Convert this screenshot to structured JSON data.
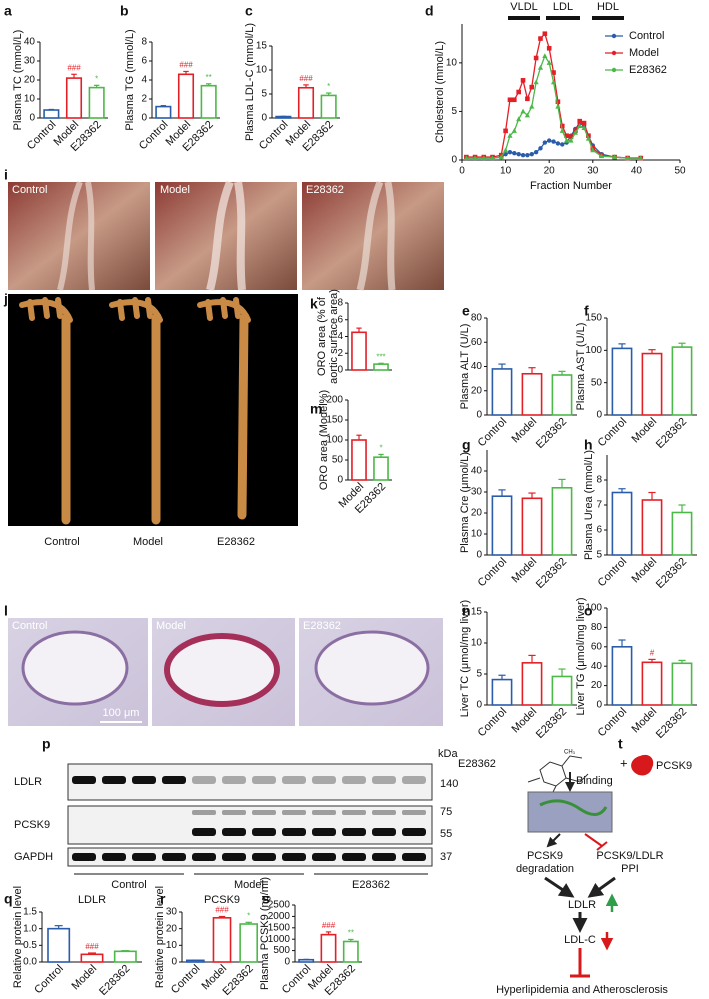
{
  "chart_data": [
    {
      "label": "a",
      "type": "bar",
      "ylabel": "Plasma TC (mmol/L)",
      "categories": [
        "Control",
        "Model",
        "E28362"
      ],
      "values": [
        4.2,
        21,
        16
      ],
      "errors": [
        0.3,
        2,
        1.2
      ],
      "colors": [
        "#2a5caa",
        "#e41f26",
        "#4cb848"
      ],
      "annotations": [
        null,
        "###",
        "*"
      ],
      "ylim": [
        0,
        40
      ],
      "yticks": [
        0,
        10,
        20,
        30,
        40
      ]
    },
    {
      "label": "b",
      "type": "bar",
      "ylabel": "Plasma TG (mmol/L)",
      "categories": [
        "Control",
        "Model",
        "E28362"
      ],
      "values": [
        1.2,
        4.6,
        3.4
      ],
      "errors": [
        0.1,
        0.3,
        0.2
      ],
      "colors": [
        "#2a5caa",
        "#e41f26",
        "#4cb848"
      ],
      "annotations": [
        null,
        "###",
        "**"
      ],
      "ylim": [
        0,
        8
      ],
      "yticks": [
        0,
        2,
        4,
        6,
        8
      ]
    },
    {
      "label": "c",
      "type": "bar",
      "ylabel": "Plasma LDL-C (mmol/L)",
      "categories": [
        "Control",
        "Model",
        "E28362"
      ],
      "values": [
        0.3,
        6.3,
        4.7
      ],
      "errors": [
        0.05,
        0.6,
        0.5
      ],
      "colors": [
        "#2a5caa",
        "#e41f26",
        "#4cb848"
      ],
      "annotations": [
        null,
        "###",
        "*"
      ],
      "ylim": [
        0,
        15
      ],
      "yticks": [
        0,
        5,
        10,
        15
      ]
    },
    {
      "label": "d",
      "type": "line",
      "xlabel": "Fraction Number",
      "ylabel": "Cholesterol (mmol/L)",
      "annotations": [
        "VLDL",
        "LDL",
        "HDL"
      ],
      "legend": "upper right",
      "x": [
        1,
        3,
        5,
        7,
        9,
        10,
        11,
        12,
        13,
        14,
        15,
        16,
        17,
        18,
        19,
        20,
        21,
        22,
        23,
        24,
        25,
        26,
        27,
        28,
        29,
        30,
        32,
        35,
        38,
        41
      ],
      "series": [
        {
          "name": "Control",
          "color": "#2a5caa",
          "marker": "circle",
          "values": [
            0.2,
            0.2,
            0.2,
            0.2,
            0.3,
            0.6,
            0.8,
            0.7,
            0.6,
            0.5,
            0.5,
            0.6,
            0.8,
            1.2,
            1.8,
            2.0,
            1.9,
            1.7,
            1.6,
            1.8,
            2.5,
            3.2,
            3.8,
            3.5,
            2.5,
            1.5,
            0.6,
            0.3,
            0.2,
            0.2
          ]
        },
        {
          "name": "Model",
          "color": "#e41f26",
          "marker": "square",
          "values": [
            0.3,
            0.3,
            0.3,
            0.3,
            0.5,
            3.0,
            6.2,
            6.2,
            7.0,
            8.2,
            6.3,
            7.5,
            10.5,
            12.5,
            13.0,
            11.5,
            9.0,
            6.0,
            3.5,
            2.5,
            2.4,
            3.0,
            4.0,
            3.8,
            2.5,
            1.2,
            0.5,
            0.3,
            0.2,
            0.2
          ]
        },
        {
          "name": "E28362",
          "color": "#4cb848",
          "marker": "triangle",
          "values": [
            0.2,
            0.2,
            0.2,
            0.2,
            0.3,
            1.0,
            2.5,
            3.0,
            4.2,
            5.0,
            4.6,
            5.5,
            8.0,
            9.5,
            10.7,
            10.0,
            8.0,
            5.5,
            3.0,
            2.0,
            2.0,
            2.8,
            3.5,
            3.3,
            2.2,
            1.0,
            0.4,
            0.3,
            0.2,
            0.2
          ]
        }
      ],
      "xlim": [
        0,
        50
      ],
      "xticks": [
        0,
        10,
        20,
        30,
        40,
        50
      ],
      "ylim": [
        0,
        14
      ],
      "yticks": [
        0,
        5,
        10
      ]
    },
    {
      "label": "e",
      "type": "bar",
      "ylabel": "Plasma ALT (U/L)",
      "categories": [
        "Control",
        "Model",
        "E28362"
      ],
      "values": [
        38,
        34,
        33
      ],
      "errors": [
        4,
        5,
        3
      ],
      "colors": [
        "#2a5caa",
        "#e41f26",
        "#4cb848"
      ],
      "ylim": [
        0,
        80
      ],
      "yticks": [
        0,
        20,
        40,
        60,
        80
      ]
    },
    {
      "label": "f",
      "type": "bar",
      "ylabel": "Plasma AST (U/L)",
      "categories": [
        "Control",
        "Model",
        "E28362"
      ],
      "values": [
        103,
        95,
        105
      ],
      "errors": [
        7,
        6,
        6
      ],
      "colors": [
        "#2a5caa",
        "#e41f26",
        "#4cb848"
      ],
      "ylim": [
        0,
        150
      ],
      "yticks": [
        0,
        50,
        100,
        150
      ]
    },
    {
      "label": "g",
      "type": "bar",
      "ylabel": "Plasma Cre (μmol/L)",
      "categories": [
        "Control",
        "Model",
        "E28362"
      ],
      "values": [
        28,
        27,
        32
      ],
      "errors": [
        3,
        2.5,
        4
      ],
      "colors": [
        "#2a5caa",
        "#e41f26",
        "#4cb848"
      ],
      "ylim": [
        0,
        50
      ],
      "yticks": [
        0,
        10,
        20,
        30,
        40
      ]
    },
    {
      "label": "h",
      "type": "bar",
      "ylabel": "Plasma Urea (mmol/L)",
      "categories": [
        "Control",
        "Model",
        "E28362"
      ],
      "values": [
        7.5,
        7.2,
        6.7
      ],
      "errors": [
        0.15,
        0.3,
        0.3
      ],
      "colors": [
        "#2a5caa",
        "#e41f26",
        "#4cb848"
      ],
      "ylim": [
        5,
        9
      ],
      "yticks": [
        5,
        6,
        7,
        8
      ]
    },
    {
      "label": "k",
      "type": "bar",
      "ylabel": [
        "ORO area (% of",
        "aortic surface area)"
      ],
      "categories": [
        null,
        null
      ],
      "values": [
        4.5,
        0.7
      ],
      "errors": [
        0.5,
        0.1
      ],
      "colors": [
        "#e41f26",
        "#4cb848"
      ],
      "annotations": [
        null,
        "***"
      ],
      "ylim": [
        0,
        8
      ],
      "yticks": [
        0,
        2,
        4,
        6,
        8
      ]
    },
    {
      "label": "m",
      "type": "bar",
      "ylabel": "ORO area (Model%)",
      "categories": [
        "Model",
        "E28362"
      ],
      "values": [
        100,
        57
      ],
      "errors": [
        12,
        7
      ],
      "colors": [
        "#e41f26",
        "#4cb848"
      ],
      "annotations": [
        null,
        "*"
      ],
      "ylim": [
        0,
        200
      ],
      "yticks": [
        0,
        50,
        100,
        150,
        200
      ]
    },
    {
      "label": "n",
      "type": "bar",
      "ylabel": "Liver TC (μmol/mg liver)",
      "categories": [
        "Control",
        "Model",
        "E28362"
      ],
      "values": [
        4.1,
        6.8,
        4.6
      ],
      "errors": [
        0.7,
        1.2,
        1.2
      ],
      "colors": [
        "#2a5caa",
        "#e41f26",
        "#4cb848"
      ],
      "ylim": [
        0,
        15
      ],
      "yticks": [
        0,
        5,
        10,
        15
      ]
    },
    {
      "label": "o",
      "type": "bar",
      "ylabel": "Liver TG (μmol/mg liver)",
      "categories": [
        "Control",
        "Model",
        "E28362"
      ],
      "values": [
        60,
        44,
        43
      ],
      "errors": [
        7,
        3,
        3
      ],
      "colors": [
        "#2a5caa",
        "#e41f26",
        "#4cb848"
      ],
      "annotations": [
        null,
        "#",
        null
      ],
      "ylim": [
        0,
        100
      ],
      "yticks": [
        0,
        20,
        40,
        60,
        80,
        100
      ]
    },
    {
      "label": "q",
      "type": "bar",
      "title": "LDLR",
      "ylabel": "Relative protein level",
      "categories": [
        "Control",
        "Model",
        "E28362"
      ],
      "values": [
        1.0,
        0.23,
        0.32
      ],
      "errors": [
        0.09,
        0.04,
        0.02
      ],
      "colors": [
        "#2a5caa",
        "#e41f26",
        "#4cb848"
      ],
      "annotations": [
        null,
        "###",
        null
      ],
      "ylim": [
        0,
        1.5
      ],
      "yticks": [
        {
          "value": 0,
          "label": "0.0"
        },
        0.5,
        {
          "value": 1,
          "label": "1.0"
        },
        1.5
      ]
    },
    {
      "label": "r",
      "type": "bar",
      "title": "PCSK9",
      "ylabel": "Relative protein level",
      "categories": [
        "Control",
        "Model",
        "E28362"
      ],
      "values": [
        1,
        26.5,
        22.8
      ],
      "errors": [
        0.1,
        0.8,
        1
      ],
      "colors": [
        "#2a5caa",
        "#e41f26",
        "#4cb848"
      ],
      "annotations": [
        null,
        "###",
        "*"
      ],
      "ylim": [
        0,
        30
      ],
      "yticks": [
        0,
        10,
        20,
        30
      ]
    },
    {
      "label": "s",
      "type": "bar",
      "ylabel": "Plasma PCSK9 (ng/ml)",
      "categories": [
        "Control",
        "Model",
        "E28362"
      ],
      "values": [
        100,
        1200,
        900
      ],
      "errors": [
        15,
        120,
        90
      ],
      "colors": [
        "#2a5caa",
        "#e41f26",
        "#4cb848"
      ],
      "annotations": [
        null,
        "###",
        "**"
      ],
      "ylim": [
        0,
        2500
      ],
      "yticks": [
        0,
        500,
        1000,
        1500,
        2000,
        2500
      ]
    }
  ],
  "images": {
    "i": {
      "label": "i",
      "captions": [
        "Control",
        "Model",
        "E28362"
      ]
    },
    "j": {
      "label": "j",
      "captions": [
        "Control",
        "Model",
        "E28362"
      ]
    },
    "l": {
      "label": "l",
      "captions": [
        "Control",
        "Model",
        "E28362"
      ],
      "scale_bar": "100 μm"
    }
  },
  "blot": {
    "label": "p",
    "unit": "kDa",
    "rows": [
      {
        "name": "LDLR",
        "markers": [
          140
        ]
      },
      {
        "name": "PCSK9",
        "markers": [
          75,
          55
        ]
      },
      {
        "name": "GAPDH",
        "markers": [
          37
        ]
      }
    ],
    "groups": [
      "Control",
      "Model",
      "E28362"
    ]
  },
  "diagram": {
    "label": "t",
    "compound": "E28362",
    "protein": "PCSK9",
    "binding": "Binding",
    "left": [
      "PCSK9",
      "degradation"
    ],
    "right": [
      "PCSK9/LDLR",
      "PPI"
    ],
    "receptor": "LDLR",
    "lipid": "LDL-C",
    "outcome": "Hyperlipidemia and  Atherosclerosis"
  }
}
